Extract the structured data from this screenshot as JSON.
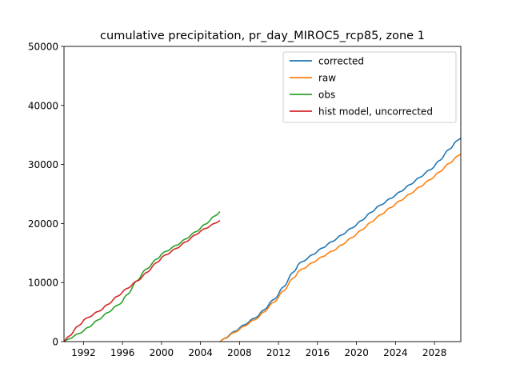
{
  "chart_data": {
    "type": "line",
    "title": "cumulative precipitation, pr_day_MIROC5_rcp85, zone 1",
    "xlabel": "",
    "ylabel": "",
    "xlim": [
      1990.0,
      2030.7
    ],
    "ylim": [
      0,
      50000
    ],
    "xticks": [
      "1992",
      "1996",
      "2000",
      "2004",
      "2008",
      "2012",
      "2016",
      "2020",
      "2024",
      "2028"
    ],
    "yticks": [
      "0",
      "10000",
      "20000",
      "30000",
      "40000",
      "50000"
    ],
    "grid": false,
    "legend_position": "top-right",
    "series": [
      {
        "name": "corrected",
        "color": "#1f77b4",
        "x": [
          2006.0,
          2008.0,
          2010.0,
          2012.0,
          2014.0,
          2016.0,
          2018.0,
          2020.0,
          2022.0,
          2024.0,
          2026.0,
          2028.0,
          2030.0,
          2030.7
        ],
        "y": [
          0,
          2300,
          4500,
          8000,
          13000,
          15300,
          17500,
          19800,
          22600,
          24800,
          27200,
          29700,
          33500,
          34500
        ]
      },
      {
        "name": "raw",
        "color": "#ff7f0e",
        "x": [
          2006.0,
          2008.0,
          2010.0,
          2012.0,
          2014.0,
          2016.0,
          2018.0,
          2020.0,
          2022.0,
          2024.0,
          2026.0,
          2028.0,
          2030.0,
          2030.7
        ],
        "y": [
          0,
          2100,
          4200,
          7500,
          11800,
          13900,
          15800,
          18200,
          20900,
          23300,
          25600,
          28000,
          30900,
          31800
        ]
      },
      {
        "name": "obs",
        "color": "#2ca02c",
        "x": [
          1990.0,
          1992.0,
          1994.0,
          1996.0,
          1998.0,
          2000.0,
          2002.0,
          2004.0,
          2006.0
        ],
        "y": [
          0,
          1800,
          4300,
          6800,
          11500,
          14800,
          16800,
          19200,
          22000
        ]
      },
      {
        "name": "hist model, uncorrected",
        "color": "#d62728",
        "x": [
          1990.0,
          1992.0,
          1994.0,
          1996.0,
          1998.0,
          2000.0,
          2002.0,
          2004.0,
          2006.0
        ],
        "y": [
          0,
          3600,
          5600,
          8400,
          10900,
          14200,
          16300,
          18700,
          20500
        ]
      }
    ]
  }
}
